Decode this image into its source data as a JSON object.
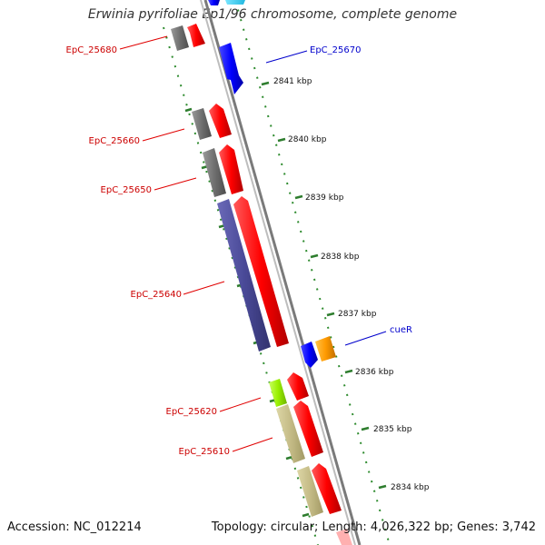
{
  "title": "Erwinia pyrifoliae Ep1/96 chromosome, complete genome",
  "accession": "Accession: NC_012214",
  "summary": "Topology: circular; Length: 4,026,322 bp; Genes: 3,742",
  "colors": {
    "backbone": "#7a7a7a",
    "ticks": "#2e7d2e",
    "forward_cds": "#ff0000",
    "reverse_cds": "#0000ff",
    "left_label": "#cc0000",
    "right_label": "#0000cc",
    "rna": "#c8c8c8"
  },
  "scale_labels": [
    "2841 kbp",
    "2840 kbp",
    "2839 kbp",
    "2838 kbp",
    "2837 kbp",
    "2836 kbp",
    "2835 kbp",
    "2834 kbp"
  ],
  "gene_labels": {
    "left": [
      "EpC_25680",
      "EpC_25660",
      "EpC_25650",
      "EpC_25640",
      "EpC_25620",
      "EpC_25610"
    ],
    "right": [
      "EpC_25670",
      "cueR"
    ]
  }
}
